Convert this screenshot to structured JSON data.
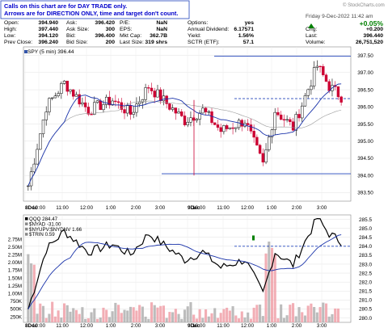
{
  "note": {
    "line1": "Calls on this chart are for DAY TRADE only.",
    "line2": "Arrows are for DIRECTION ONLY, time and target don't count."
  },
  "brand": "© StockCharts.com",
  "header": {
    "date_time": "Friday  9-Dec-2022  11:42 am",
    "change_pct": "+0.05%",
    "rows": [
      [
        [
          "Open:",
          "394.940"
        ],
        [
          "Ask:",
          "396.420"
        ],
        [
          "P/E:",
          "NaN"
        ],
        [
          "Options:",
          "yes"
        ]
      ],
      [
        [
          "High:",
          "397.440"
        ],
        [
          "Ask Size:",
          "300"
        ],
        [
          "EPS:",
          "NaN"
        ],
        [
          "Annual Dividend:",
          "6.17571"
        ]
      ],
      [
        [
          "Low:",
          "394.120"
        ],
        [
          "Bid:",
          "396.400"
        ],
        [
          "Mkt Cap:",
          "362.7B"
        ],
        [
          "Yield:",
          "1.56%"
        ]
      ],
      [
        [
          "Prev Close:",
          "396.240"
        ],
        [
          "Bid Size:",
          "200"
        ],
        [
          "Last Size:",
          "319 shrs"
        ],
        [
          "SCTR (ETF):",
          "57.1"
        ]
      ]
    ],
    "right_rows": [
      [
        "Chg:",
        "+0.200"
      ],
      [
        "Last:",
        "396.440"
      ],
      [
        "Volume:",
        "26,751,520"
      ]
    ],
    "colors": {
      "label": "#000000",
      "value": "#000000",
      "up": "#008000",
      "note": "#0000cc"
    }
  },
  "chart_data": [
    {
      "type": "candlestick",
      "legend": "SPY (5 min) 396.44",
      "y_ticks": [
        "397.50",
        "397.00",
        "396.50",
        "396.00",
        "395.50",
        "395.00",
        "394.50",
        "394.00",
        "393.50"
      ],
      "ylim": [
        393.25,
        397.75
      ],
      "x_ticks": [
        "8Dec",
        "10:00",
        "11:00",
        "12:00",
        "1:00",
        "2:00",
        "3:00",
        "9Dec",
        "10:00",
        "11:00",
        "12:00",
        "1:00",
        "2:00",
        "3:00"
      ],
      "reference_lines": [
        {
          "value": 397.48,
          "style": "solid",
          "color": "#2244bb"
        },
        {
          "value": 396.24,
          "style": "dashed",
          "color": "#2244bb"
        },
        {
          "value": 394.05,
          "style": "solid",
          "color": "#2244bb"
        }
      ],
      "colors": {
        "up": "#000000",
        "down": "#cc0033",
        "ma": "#1a33aa",
        "ma2": "#999999"
      }
    },
    {
      "type": "line",
      "legend": [
        "QQQ 284.47",
        "$NYAD -31.00",
        "$NYUPV:$NYDNV 1.66",
        "$TRIN 0.59"
      ],
      "y_ticks": [
        "285.5",
        "285.0",
        "284.5",
        "284.0",
        "283.5",
        "283.0",
        "282.5",
        "282.0",
        "281.5",
        "281.0",
        "280.5",
        "280.0"
      ],
      "ylim": [
        279.75,
        285.75
      ],
      "volume_ticks": [
        "2.75M",
        "2.50M",
        "2.25M",
        "2.00M",
        "1.75M",
        "1.50M",
        "1.25M",
        "1.00M",
        "750K",
        "500K",
        "250K"
      ],
      "x_ticks": [
        "8Dec",
        "10:00",
        "11:00",
        "12:00",
        "1:00",
        "2:00",
        "3:00",
        "9Dec",
        "10:00",
        "11:00",
        "12:00",
        "1:00",
        "2:00",
        "3:00"
      ],
      "reference_lines": [
        {
          "value": 284.0,
          "style": "dashed",
          "color": "#2244bb"
        }
      ],
      "colors": {
        "line": "#000000",
        "ma": "#1a33aa",
        "vol_up": "#b0b0b0",
        "vol_down": "#f0a0a8"
      }
    }
  ]
}
